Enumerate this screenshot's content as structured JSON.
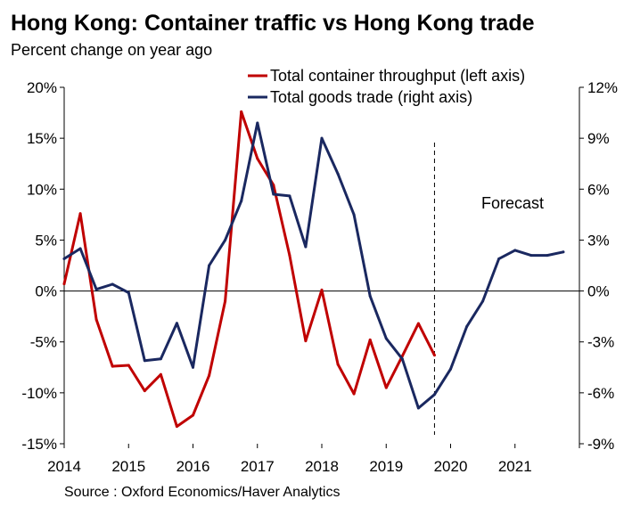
{
  "chart_data": {
    "type": "line",
    "title": "Hong Kong: Container traffic vs Hong Kong trade",
    "subtitle": "Percent change on year ago",
    "source": "Source : Oxford Economics/Haver Analytics",
    "annotation": "Forecast",
    "forecast_start": 2019.75,
    "x_ticks": [
      "2014",
      "2015",
      "2016",
      "2017",
      "2018",
      "2019",
      "2020",
      "2021"
    ],
    "x_range": [
      2014,
      2022
    ],
    "left_axis": {
      "ylim": [
        -15,
        20
      ],
      "ticks": [
        20,
        15,
        10,
        5,
        0,
        -5,
        -10,
        -15
      ],
      "labels": [
        "20%",
        "15%",
        "10%",
        "5%",
        "0%",
        "-5%",
        "-10%",
        "-15%"
      ]
    },
    "right_axis": {
      "ylim": [
        -9,
        12
      ],
      "ticks": [
        12,
        9,
        6,
        3,
        0,
        -3,
        -6,
        -9
      ],
      "labels": [
        "12%",
        "9%",
        "6%",
        "3%",
        "0%",
        "-3%",
        "-6%",
        "-9%"
      ]
    },
    "legend": "top-right",
    "series": [
      {
        "name": "Total container throughput (left axis)",
        "axis": "left",
        "color": "#c00000",
        "x": [
          2014.0,
          2014.25,
          2014.5,
          2014.75,
          2015.0,
          2015.25,
          2015.5,
          2015.75,
          2016.0,
          2016.25,
          2016.5,
          2016.75,
          2017.0,
          2017.25,
          2017.5,
          2017.75,
          2018.0,
          2018.25,
          2018.5,
          2018.75,
          2019.0,
          2019.25,
          2019.5,
          2019.75
        ],
        "values": [
          0.7,
          7.6,
          -2.8,
          -7.4,
          -7.3,
          -9.8,
          -8.2,
          -13.3,
          -12.2,
          -8.3,
          -1.0,
          17.6,
          13.0,
          10.4,
          3.5,
          -4.9,
          0.1,
          -7.2,
          -10.1,
          -4.8,
          -9.5,
          -6.4,
          -3.2,
          -6.3
        ]
      },
      {
        "name": "Total goods trade (right axis)",
        "axis": "right",
        "color": "#1a2860",
        "x": [
          2014.0,
          2014.25,
          2014.5,
          2014.75,
          2015.0,
          2015.25,
          2015.5,
          2015.75,
          2016.0,
          2016.25,
          2016.5,
          2016.75,
          2017.0,
          2017.25,
          2017.5,
          2017.75,
          2018.0,
          2018.25,
          2018.5,
          2018.75,
          2019.0,
          2019.25,
          2019.5,
          2019.75,
          2020.0,
          2020.25,
          2020.5,
          2020.75,
          2021.0,
          2021.25,
          2021.5,
          2021.75
        ],
        "values": [
          1.9,
          2.5,
          0.1,
          0.4,
          -0.1,
          -4.1,
          -4.0,
          -1.9,
          -4.5,
          1.5,
          3.0,
          5.3,
          9.9,
          5.7,
          5.6,
          2.6,
          9.0,
          6.9,
          4.5,
          -0.3,
          -2.8,
          -4.0,
          -6.9,
          -6.1,
          -4.6,
          -2.1,
          -0.6,
          1.9,
          2.4,
          2.1,
          2.1,
          2.3
        ]
      }
    ]
  }
}
